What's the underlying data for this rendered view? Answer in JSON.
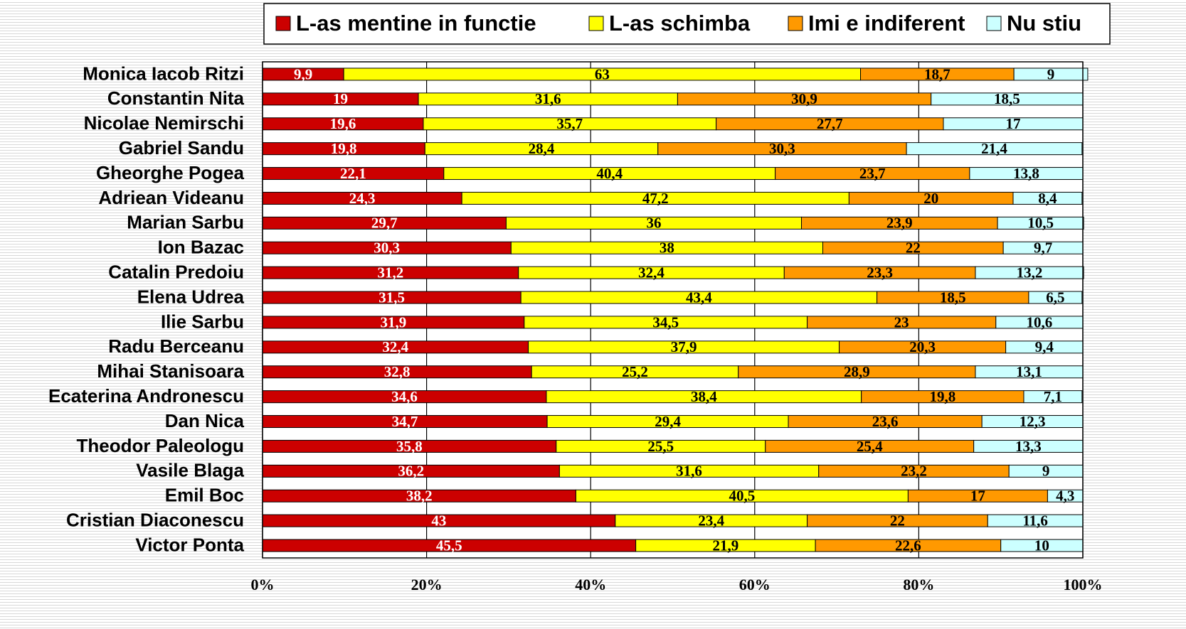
{
  "chart_data": {
    "type": "stacked_bar_horizontal",
    "categories": [
      "Monica Iacob Ritzi",
      "Constantin Nita",
      "Nicolae Nemirschi",
      "Gabriel Sandu",
      "Gheorghe Pogea",
      "Adriean Videanu",
      "Marian Sarbu",
      "Ion Bazac",
      "Catalin Predoiu",
      "Elena Udrea",
      "Ilie Sarbu",
      "Radu Berceanu",
      "Mihai Stanisoara",
      "Ecaterina Andronescu",
      "Dan Nica",
      "Theodor Paleologu",
      "Vasile Blaga",
      "Emil Boc",
      "Cristian Diaconescu",
      "Victor Ponta"
    ],
    "series": [
      {
        "name": "L-as mentine in functie",
        "color": "#cc0000",
        "values": [
          9.9,
          19,
          19.6,
          19.8,
          22.1,
          24.3,
          29.7,
          30.3,
          31.2,
          31.5,
          31.9,
          32.4,
          32.8,
          34.6,
          34.7,
          35.8,
          36.2,
          38.2,
          43,
          45.5
        ],
        "value_labels": [
          "9,9",
          "19",
          "19,6",
          "19,8",
          "22,1",
          "24,3",
          "29,7",
          "30,3",
          "31,2",
          "31,5",
          "31,9",
          "32,4",
          "32,8",
          "34,6",
          "34,7",
          "35,8",
          "36,2",
          "38,2",
          "43",
          "45,5"
        ]
      },
      {
        "name": "L-as schimba",
        "color": "#ffff00",
        "values": [
          63,
          31.6,
          35.7,
          28.4,
          40.4,
          47.2,
          36,
          38,
          32.4,
          43.4,
          34.5,
          37.9,
          25.2,
          38.4,
          29.4,
          25.5,
          31.6,
          40.5,
          23.4,
          21.9
        ],
        "value_labels": [
          "63",
          "31,6",
          "35,7",
          "28,4",
          "40,4",
          "47,2",
          "36",
          "38",
          "32,4",
          "43,4",
          "34,5",
          "37,9",
          "25,2",
          "38,4",
          "29,4",
          "25,5",
          "31,6",
          "40,5",
          "23,4",
          "21,9"
        ]
      },
      {
        "name": "Imi e indiferent",
        "color": "#ff9900",
        "values": [
          18.7,
          30.9,
          27.7,
          30.3,
          23.7,
          20,
          23.9,
          22,
          23.3,
          18.5,
          23,
          20.3,
          28.9,
          19.8,
          23.6,
          25.4,
          23.2,
          17,
          22,
          22.6
        ],
        "value_labels": [
          "18,7",
          "30,9",
          "27,7",
          "30,3",
          "23,7",
          "20",
          "23,9",
          "22",
          "23,3",
          "18,5",
          "23",
          "20,3",
          "28,9",
          "19,8",
          "23,6",
          "25,4",
          "23,2",
          "17",
          "22",
          "22,6"
        ]
      },
      {
        "name": "Nu stiu",
        "color": "#ccffff",
        "values": [
          9,
          18.5,
          17,
          21.4,
          13.8,
          8.4,
          10.5,
          9.7,
          13.2,
          6.5,
          10.6,
          9.4,
          13.1,
          7.1,
          12.3,
          13.3,
          9,
          4.3,
          11.6,
          10
        ],
        "value_labels": [
          "9",
          "18,5",
          "17",
          "21,4",
          "13,8",
          "8,4",
          "10,5",
          "9,7",
          "13,2",
          "6,5",
          "10,6",
          "9,4",
          "13,1",
          "7,1",
          "12,3",
          "13,3",
          "9",
          "4,3",
          "11,6",
          "10"
        ]
      }
    ],
    "xlim": [
      0,
      100
    ],
    "xticks": [
      {
        "value": 0,
        "label": "0%"
      },
      {
        "value": 20,
        "label": "20%"
      },
      {
        "value": 40,
        "label": "40%"
      },
      {
        "value": 60,
        "label": "60%"
      },
      {
        "value": 80,
        "label": "80%"
      },
      {
        "value": 100,
        "label": "100%"
      }
    ],
    "grid": true,
    "legend": "top"
  }
}
